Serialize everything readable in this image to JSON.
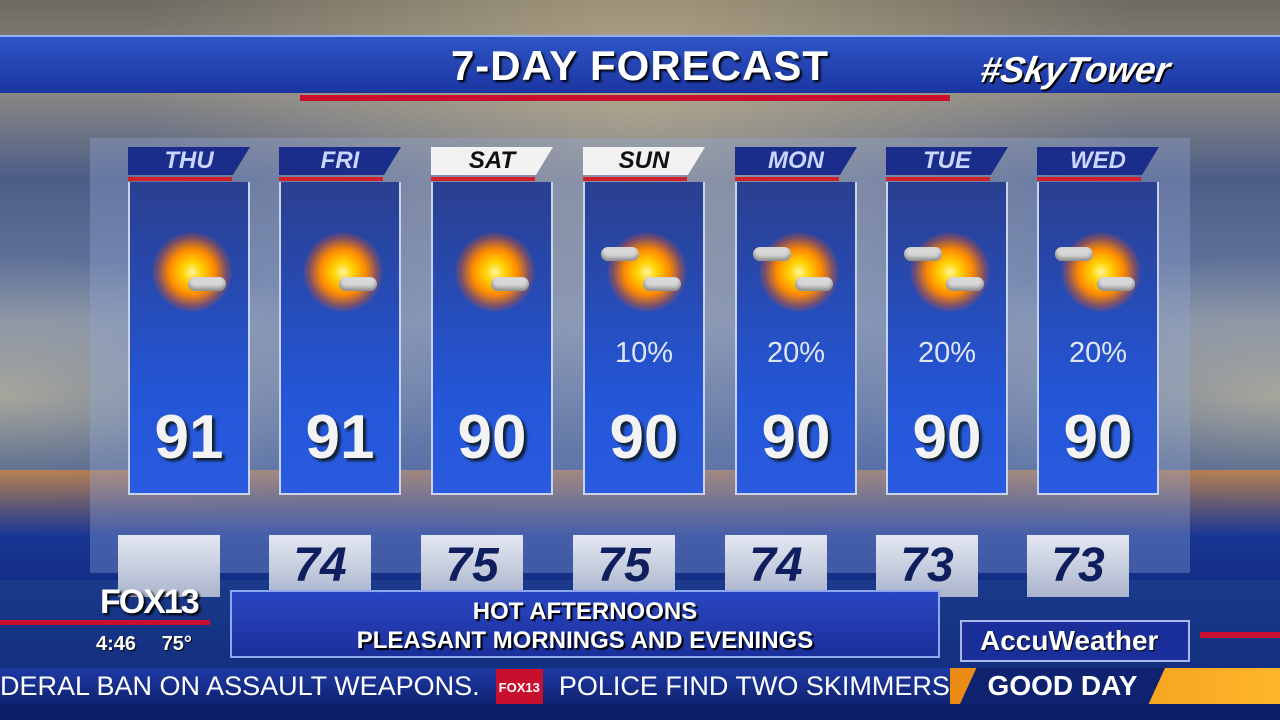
{
  "header": {
    "title": "7-DAY FORECAST",
    "brand": "#SkyTower"
  },
  "days": [
    {
      "day": "THU",
      "high": "91",
      "low": "",
      "precip": "",
      "icon": "sun-clouds-icon",
      "tab_style": "dark"
    },
    {
      "day": "FRI",
      "high": "91",
      "low": "74",
      "precip": "",
      "icon": "sun-clouds-icon",
      "tab_style": "dark"
    },
    {
      "day": "SAT",
      "high": "90",
      "low": "75",
      "precip": "",
      "icon": "sun-clouds-icon",
      "tab_style": "light"
    },
    {
      "day": "SUN",
      "high": "90",
      "low": "75",
      "precip": "10%",
      "icon": "partly-sunny-icon",
      "tab_style": "light"
    },
    {
      "day": "MON",
      "high": "90",
      "low": "74",
      "precip": "20%",
      "icon": "partly-sunny-icon",
      "tab_style": "dark"
    },
    {
      "day": "TUE",
      "high": "90",
      "low": "73",
      "precip": "20%",
      "icon": "partly-sunny-icon",
      "tab_style": "dark"
    },
    {
      "day": "WED",
      "high": "90",
      "low": "73",
      "precip": "20%",
      "icon": "partly-sunny-icon",
      "tab_style": "dark"
    }
  ],
  "station": {
    "logo": "FOX13",
    "time": "4:46",
    "temp": "75°"
  },
  "message": {
    "line1": "HOT AFTERNOONS",
    "line2": "PLEASANT MORNINGS AND EVENINGS"
  },
  "sponsor": "AccuWeather",
  "ticker": {
    "item1": "DERAL BAN ON ASSAULT WEAPONS.",
    "badge": "FOX13",
    "item2": "POLICE FIND TWO SKIMMERS ON G"
  },
  "show": "GOOD DAY",
  "colors": {
    "accent_red": "#c8102e",
    "brand_blue": "#1a2f9a",
    "show_orange": "#ffb62a"
  }
}
